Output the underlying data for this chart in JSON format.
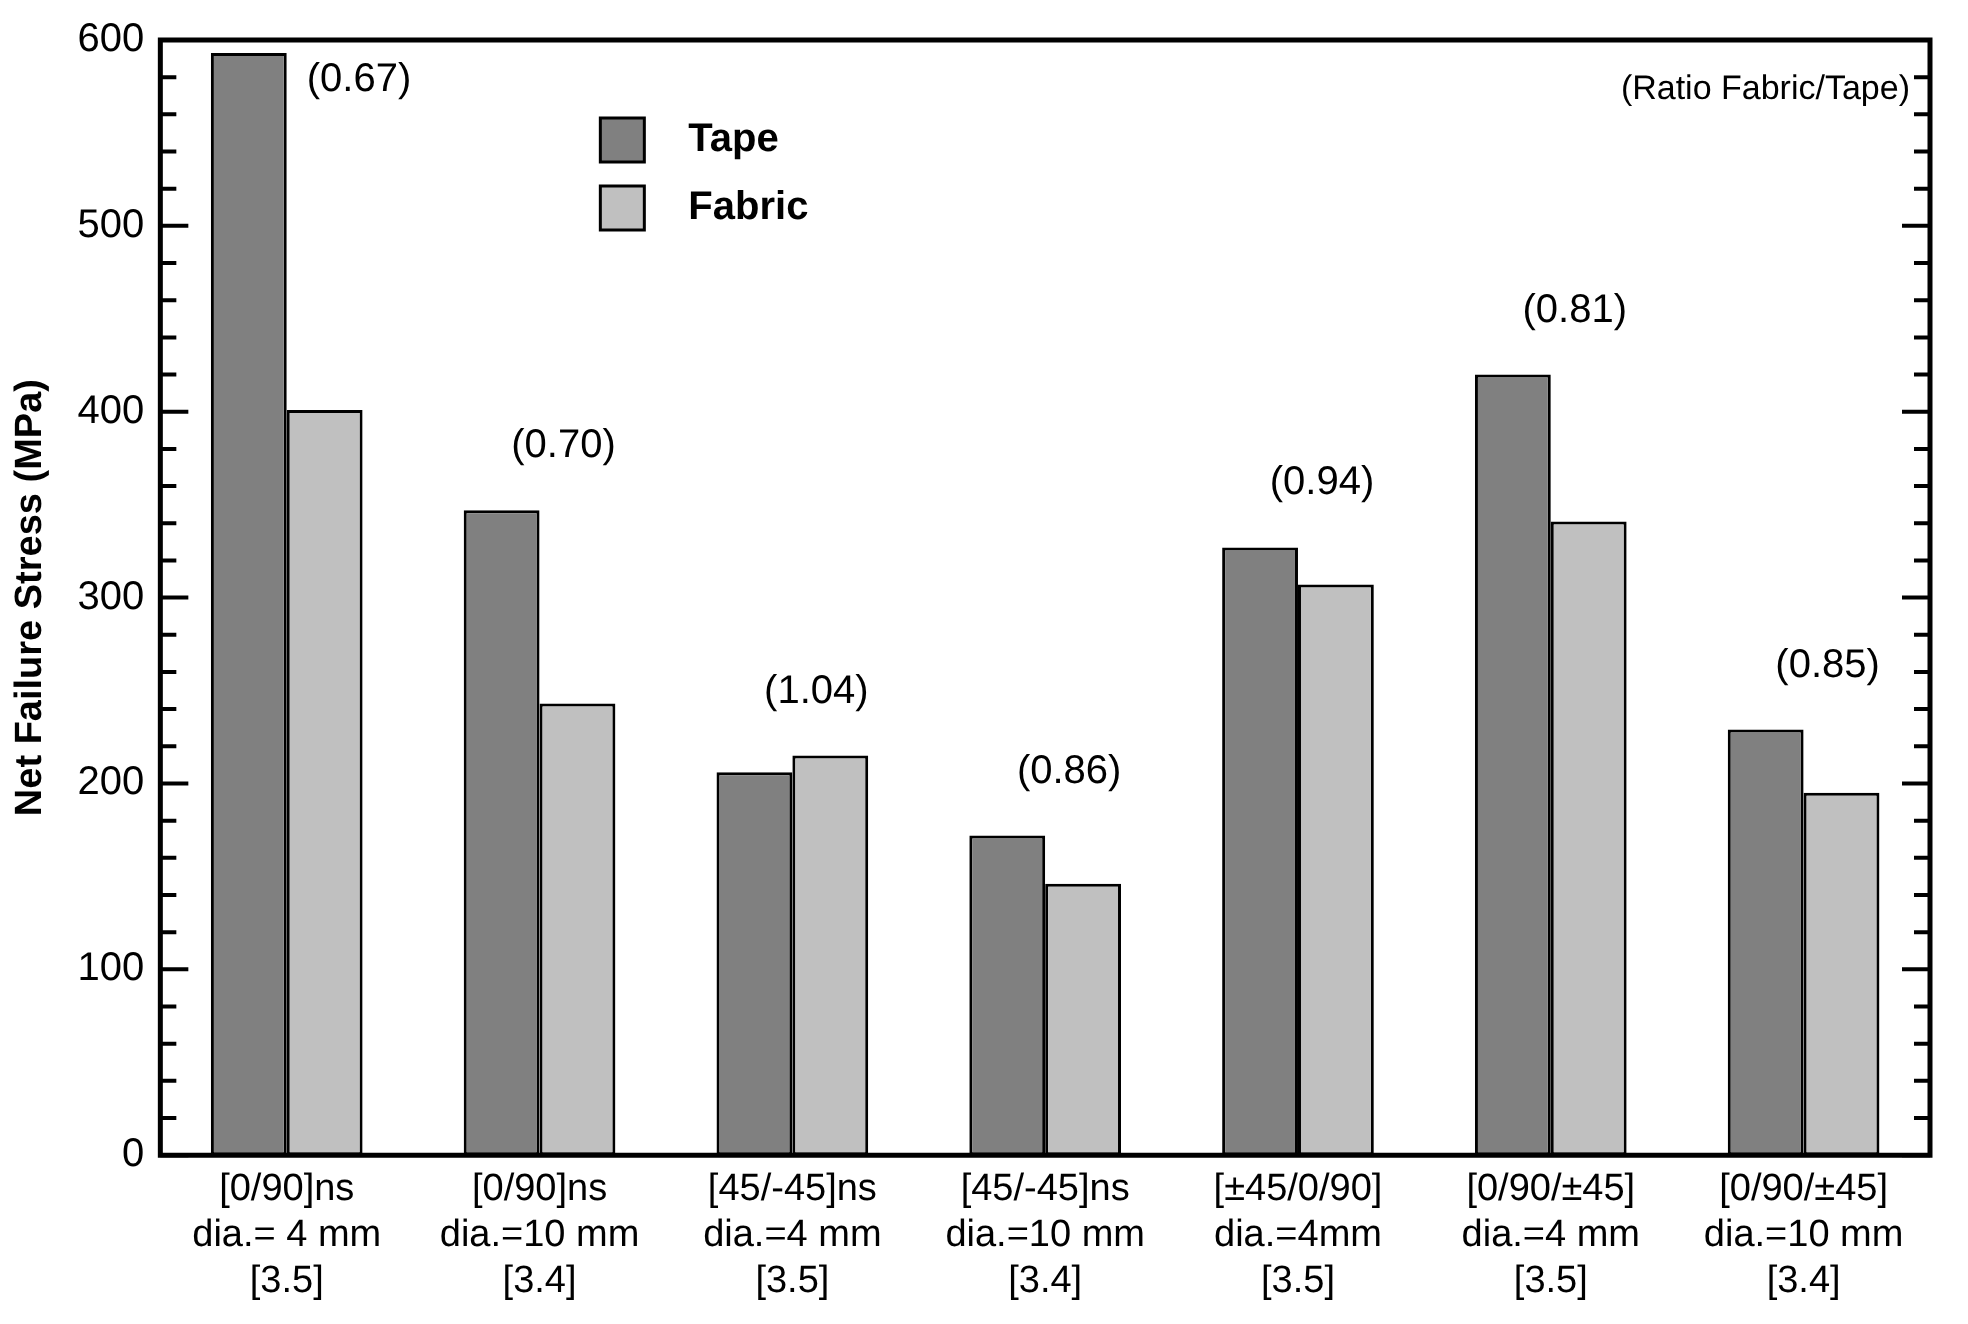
{
  "chart_data": {
    "type": "bar",
    "ylabel": "Net Failure Stress (MPa)",
    "categories": [
      "[0/90]ns\ndia.= 4 mm\n[3.5]",
      "[0/90]ns\ndia.=10 mm\n[3.4]",
      "[45/-45]ns\ndia.=4 mm\n[3.5]",
      "[45/-45]ns\ndia.=10 mm\n[3.4]",
      "[±45/0/90]\ndia.=4mm\n[3.5]",
      "[0/90/±45]\ndia.=4 mm\n[3.5]",
      "[0/90/±45]\ndia.=10 mm\n[3.4]"
    ],
    "series": [
      {
        "name": "Tape",
        "color": "#808080",
        "values": [
          593,
          347,
          206,
          172,
          327,
          420,
          229
        ]
      },
      {
        "name": "Fabric",
        "color": "#c0c0c0",
        "values": [
          401,
          243,
          215,
          146,
          307,
          341,
          195
        ]
      }
    ],
    "ylim": [
      0,
      600
    ],
    "yticks": [
      0,
      {
        "value": 20,
        "label": null
      },
      {
        "value": 40,
        "label": null
      },
      {
        "value": 60,
        "label": null
      },
      {
        "value": 80,
        "label": null
      },
      100,
      {
        "value": 120,
        "label": null
      },
      {
        "value": 140,
        "label": null
      },
      {
        "value": 160,
        "label": null
      },
      {
        "value": 180,
        "label": null
      },
      200,
      {
        "value": 220,
        "label": null
      },
      {
        "value": 240,
        "label": null
      },
      {
        "value": 260,
        "label": null
      },
      {
        "value": 280,
        "label": null
      },
      300,
      {
        "value": 320,
        "label": null
      },
      {
        "value": 340,
        "label": null
      },
      {
        "value": 360,
        "label": null
      },
      {
        "value": 380,
        "label": null
      },
      400,
      {
        "value": 420,
        "label": null
      },
      {
        "value": 440,
        "label": null
      },
      {
        "value": 460,
        "label": null
      },
      {
        "value": 480,
        "label": null
      },
      500,
      {
        "value": 520,
        "label": null
      },
      {
        "value": 540,
        "label": null
      },
      {
        "value": 560,
        "label": null
      },
      {
        "value": 580,
        "label": null
      },
      600
    ],
    "grid": false,
    "legend": "top left",
    "annotations": [
      "(0.67)",
      "(0.70)",
      "(1.04)",
      "(0.86)",
      "(0.94)",
      "(0.81)",
      "(0.85)",
      "(Ratio Fabric/Tape)"
    ]
  }
}
